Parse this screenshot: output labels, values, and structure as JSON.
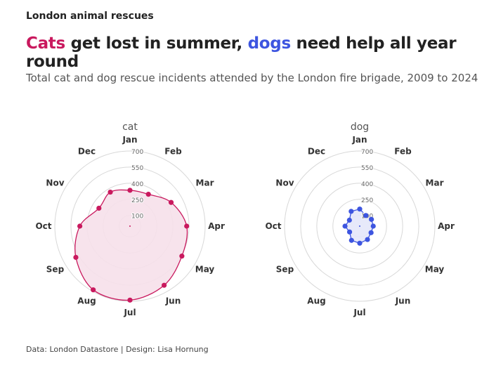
{
  "kicker": "London animal rescues",
  "headline": {
    "part1": "Cats",
    "part2": " get lost in summer, ",
    "part3": "dogs",
    "part4": " need help all year round"
  },
  "subtitle": "Total cat and dog rescue incidents attended by the London fire brigade, 2009 to 2024",
  "footer": {
    "source": "Data: London Datastore",
    "separator": " |  ",
    "design": "Design: Lisa Hornung"
  },
  "colors": {
    "cat": "#c9195e",
    "dog": "#3d55e0",
    "cat_fill": "#f6e0ea",
    "dog_fill": "#e4e7fa",
    "grid": "#d8d8d8"
  },
  "chart_data": [
    {
      "type": "radar",
      "title": "cat",
      "categories": [
        "Jan",
        "Feb",
        "Mar",
        "Apr",
        "May",
        "Jun",
        "Jul",
        "Aug",
        "Sep",
        "Oct",
        "Nov",
        "Dec"
      ],
      "radial_ticks": [
        100,
        250,
        400,
        550,
        700
      ],
      "rlim": [
        0,
        700
      ],
      "values": [
        334,
        343,
        442,
        528,
        558,
        636,
        689,
        685,
        582,
        467,
        334,
        366
      ]
    },
    {
      "type": "radar",
      "title": "dog",
      "categories": [
        "Jan",
        "Feb",
        "Mar",
        "Apr",
        "May",
        "Jun",
        "Jul",
        "Aug",
        "Sep",
        "Oct",
        "Nov",
        "Dec"
      ],
      "radial_ticks": [
        100,
        250,
        400,
        550,
        700
      ],
      "rlim": [
        0,
        700
      ],
      "values": [
        159,
        114,
        126,
        126,
        122,
        144,
        159,
        153,
        109,
        137,
        111,
        159
      ]
    }
  ]
}
